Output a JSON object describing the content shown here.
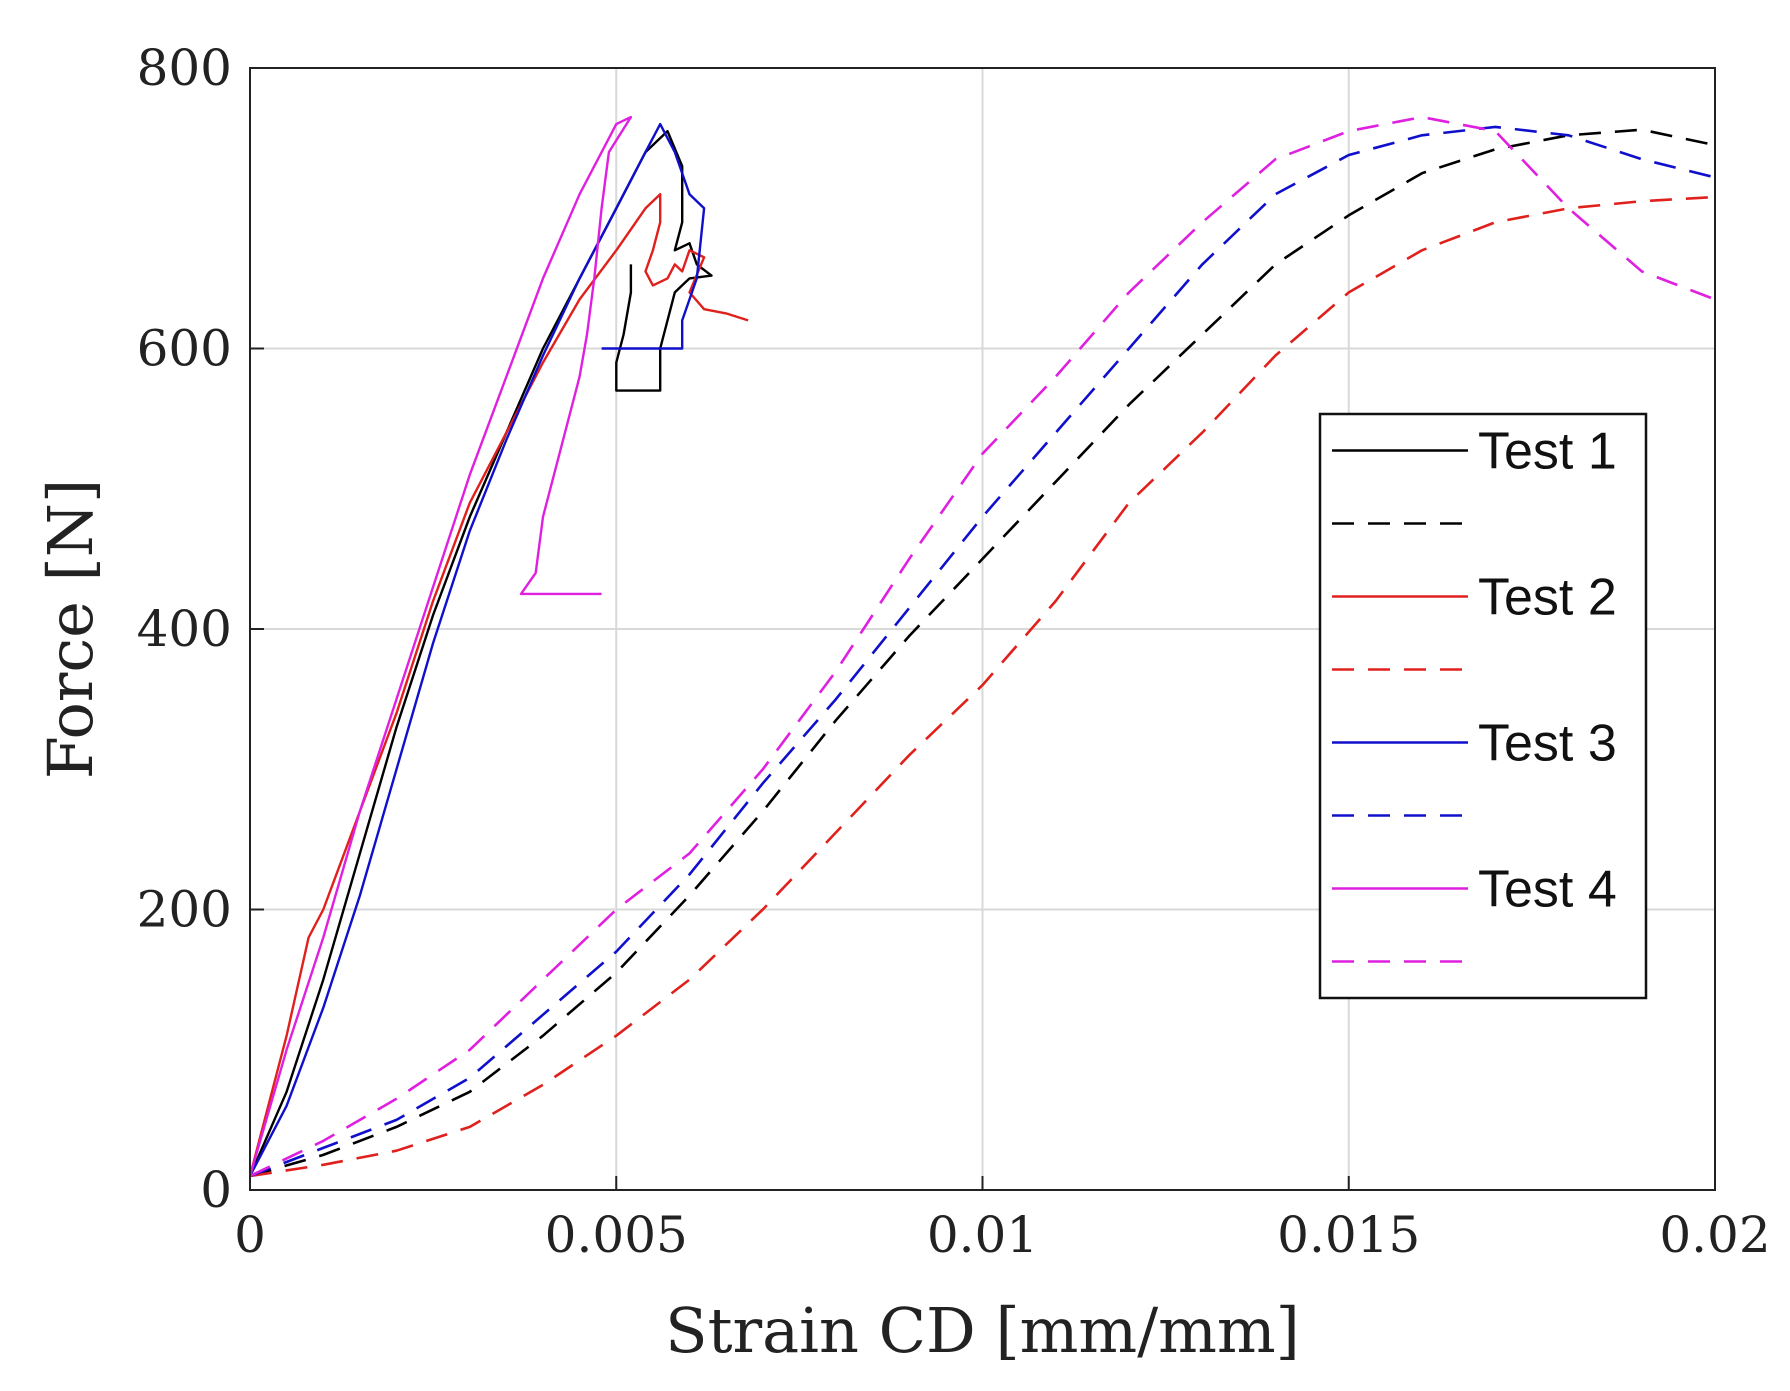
{
  "chart_data": {
    "type": "line",
    "title": "",
    "xlabel": "Strain CD [mm/mm]",
    "ylabel": "Force [N]",
    "xlim": [
      0,
      0.02
    ],
    "ylim": [
      0,
      800
    ],
    "xticks": [
      0,
      0.005,
      0.01,
      0.015,
      0.02
    ],
    "xtick_labels": [
      "0",
      "0.005",
      "0.01",
      "0.015",
      "0.02"
    ],
    "yticks": [
      0,
      200,
      400,
      600,
      800
    ],
    "ytick_labels": [
      "0",
      "200",
      "400",
      "600",
      "800"
    ],
    "grid": true,
    "legend_position": "right",
    "colors": {
      "test1": "#000000",
      "test2": "#e0201c",
      "test3": "#1010cc",
      "test4": "#e020e0"
    },
    "series": [
      {
        "name": "Test 1",
        "legend_label": "Test 1",
        "color": "#000000",
        "style": "solid",
        "points": [
          [
            0,
            10
          ],
          [
            0.0005,
            70
          ],
          [
            0.001,
            150
          ],
          [
            0.0015,
            240
          ],
          [
            0.002,
            330
          ],
          [
            0.0025,
            410
          ],
          [
            0.003,
            480
          ],
          [
            0.0035,
            540
          ],
          [
            0.004,
            600
          ],
          [
            0.0045,
            650
          ],
          [
            0.005,
            700
          ],
          [
            0.0054,
            740
          ],
          [
            0.0057,
            755
          ],
          [
            0.0059,
            730
          ],
          [
            0.0059,
            690
          ],
          [
            0.0058,
            670
          ],
          [
            0.006,
            675
          ],
          [
            0.0061,
            660
          ],
          [
            0.0063,
            652
          ],
          [
            0.006,
            650
          ],
          [
            0.0058,
            640
          ],
          [
            0.0056,
            600
          ],
          [
            0.0056,
            570
          ],
          [
            0.005,
            570
          ],
          [
            0.005,
            590
          ],
          [
            0.0051,
            610
          ],
          [
            0.0052,
            640
          ],
          [
            0.0052,
            660
          ]
        ]
      },
      {
        "name": "Test 1 (dashed)",
        "legend_label": "",
        "color": "#000000",
        "style": "dashed",
        "points": [
          [
            0,
            10
          ],
          [
            0.001,
            25
          ],
          [
            0.002,
            45
          ],
          [
            0.003,
            70
          ],
          [
            0.004,
            110
          ],
          [
            0.005,
            155
          ],
          [
            0.006,
            210
          ],
          [
            0.007,
            270
          ],
          [
            0.008,
            335
          ],
          [
            0.009,
            395
          ],
          [
            0.01,
            450
          ],
          [
            0.011,
            505
          ],
          [
            0.012,
            560
          ],
          [
            0.013,
            610
          ],
          [
            0.014,
            660
          ],
          [
            0.015,
            695
          ],
          [
            0.016,
            725
          ],
          [
            0.017,
            742
          ],
          [
            0.018,
            752
          ],
          [
            0.019,
            756
          ],
          [
            0.02,
            745
          ]
        ]
      },
      {
        "name": "Test 2",
        "legend_label": "Test 2",
        "color": "#e0201c",
        "style": "solid",
        "points": [
          [
            0,
            10
          ],
          [
            0.0005,
            110
          ],
          [
            0.0008,
            180
          ],
          [
            0.001,
            200
          ],
          [
            0.0015,
            270
          ],
          [
            0.002,
            340
          ],
          [
            0.0025,
            420
          ],
          [
            0.003,
            490
          ],
          [
            0.0035,
            540
          ],
          [
            0.004,
            590
          ],
          [
            0.0045,
            635
          ],
          [
            0.005,
            670
          ],
          [
            0.0054,
            700
          ],
          [
            0.0056,
            710
          ],
          [
            0.0056,
            690
          ],
          [
            0.0055,
            670
          ],
          [
            0.0054,
            655
          ],
          [
            0.0055,
            645
          ],
          [
            0.0057,
            650
          ],
          [
            0.0058,
            660
          ],
          [
            0.0059,
            655
          ],
          [
            0.006,
            670
          ],
          [
            0.0062,
            665
          ],
          [
            0.006,
            640
          ],
          [
            0.0062,
            628
          ],
          [
            0.0065,
            625
          ],
          [
            0.0068,
            620
          ]
        ]
      },
      {
        "name": "Test 2 (dashed)",
        "legend_label": "",
        "color": "#e0201c",
        "style": "dashed",
        "points": [
          [
            0,
            10
          ],
          [
            0.001,
            18
          ],
          [
            0.002,
            28
          ],
          [
            0.003,
            45
          ],
          [
            0.004,
            75
          ],
          [
            0.005,
            110
          ],
          [
            0.006,
            150
          ],
          [
            0.007,
            200
          ],
          [
            0.008,
            255
          ],
          [
            0.009,
            310
          ],
          [
            0.01,
            360
          ],
          [
            0.011,
            420
          ],
          [
            0.012,
            490
          ],
          [
            0.013,
            540
          ],
          [
            0.014,
            595
          ],
          [
            0.015,
            640
          ],
          [
            0.016,
            670
          ],
          [
            0.017,
            690
          ],
          [
            0.018,
            700
          ],
          [
            0.019,
            705
          ],
          [
            0.02,
            708
          ]
        ]
      },
      {
        "name": "Test 3",
        "legend_label": "Test 3",
        "color": "#1010cc",
        "style": "solid",
        "points": [
          [
            0,
            10
          ],
          [
            0.0005,
            60
          ],
          [
            0.001,
            130
          ],
          [
            0.0015,
            210
          ],
          [
            0.002,
            300
          ],
          [
            0.0025,
            390
          ],
          [
            0.003,
            470
          ],
          [
            0.0035,
            535
          ],
          [
            0.004,
            595
          ],
          [
            0.0045,
            650
          ],
          [
            0.005,
            700
          ],
          [
            0.0054,
            740
          ],
          [
            0.0056,
            760
          ],
          [
            0.0058,
            740
          ],
          [
            0.006,
            710
          ],
          [
            0.0062,
            700
          ],
          [
            0.0061,
            650
          ],
          [
            0.0059,
            620
          ],
          [
            0.0059,
            600
          ],
          [
            0.0048,
            600
          ]
        ]
      },
      {
        "name": "Test 3 (dashed)",
        "legend_label": "",
        "color": "#1010cc",
        "style": "dashed",
        "points": [
          [
            0,
            10
          ],
          [
            0.001,
            30
          ],
          [
            0.002,
            50
          ],
          [
            0.003,
            80
          ],
          [
            0.004,
            125
          ],
          [
            0.005,
            170
          ],
          [
            0.006,
            225
          ],
          [
            0.007,
            290
          ],
          [
            0.008,
            350
          ],
          [
            0.009,
            415
          ],
          [
            0.01,
            480
          ],
          [
            0.011,
            540
          ],
          [
            0.012,
            600
          ],
          [
            0.013,
            660
          ],
          [
            0.014,
            710
          ],
          [
            0.015,
            738
          ],
          [
            0.016,
            752
          ],
          [
            0.017,
            758
          ],
          [
            0.018,
            752
          ],
          [
            0.019,
            735
          ],
          [
            0.02,
            722
          ]
        ]
      },
      {
        "name": "Test 4",
        "legend_label": "Test 4",
        "color": "#e020e0",
        "style": "solid",
        "points": [
          [
            0,
            10
          ],
          [
            0.0005,
            100
          ],
          [
            0.001,
            180
          ],
          [
            0.0015,
            270
          ],
          [
            0.002,
            350
          ],
          [
            0.0025,
            430
          ],
          [
            0.003,
            510
          ],
          [
            0.0035,
            580
          ],
          [
            0.004,
            650
          ],
          [
            0.0045,
            710
          ],
          [
            0.005,
            760
          ],
          [
            0.0052,
            765
          ],
          [
            0.0049,
            740
          ],
          [
            0.0048,
            700
          ],
          [
            0.0047,
            650
          ],
          [
            0.0046,
            610
          ],
          [
            0.0045,
            580
          ],
          [
            0.0043,
            540
          ],
          [
            0.004,
            480
          ],
          [
            0.0039,
            440
          ],
          [
            0.0037,
            425
          ],
          [
            0.0048,
            425
          ]
        ]
      },
      {
        "name": "Test 4 (dashed)",
        "legend_label": "",
        "color": "#e020e0",
        "style": "dashed",
        "points": [
          [
            0,
            10
          ],
          [
            0.001,
            35
          ],
          [
            0.002,
            65
          ],
          [
            0.003,
            100
          ],
          [
            0.004,
            150
          ],
          [
            0.005,
            200
          ],
          [
            0.006,
            240
          ],
          [
            0.007,
            300
          ],
          [
            0.008,
            370
          ],
          [
            0.009,
            450
          ],
          [
            0.01,
            525
          ],
          [
            0.011,
            580
          ],
          [
            0.012,
            640
          ],
          [
            0.013,
            690
          ],
          [
            0.014,
            735
          ],
          [
            0.015,
            755
          ],
          [
            0.016,
            765
          ],
          [
            0.017,
            755
          ],
          [
            0.018,
            700
          ],
          [
            0.019,
            655
          ],
          [
            0.02,
            635
          ]
        ]
      }
    ]
  }
}
